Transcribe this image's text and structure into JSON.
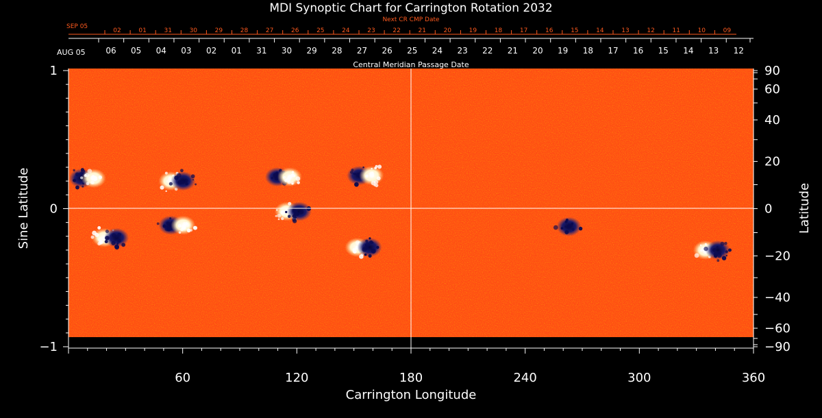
{
  "chart_data": {
    "type": "heatmap",
    "title": "MDI Synoptic Chart for Carrington Rotation 2032",
    "xlabel": "Carrington Longitude",
    "ylabel_left": "Sine Latitude",
    "ylabel_right": "Latitude",
    "xlim": [
      0,
      360
    ],
    "ylim": [
      -1,
      1
    ],
    "x_ticks": [
      60,
      120,
      180,
      240,
      300,
      360
    ],
    "y_ticks_left": [
      {
        "value": 1,
        "label": "1"
      },
      {
        "value": 0,
        "label": "0"
      },
      {
        "value": -1,
        "label": "−1"
      }
    ],
    "y_ticks_right": [
      {
        "lat": 90,
        "label": "90"
      },
      {
        "lat": 60,
        "label": "60"
      },
      {
        "lat": 40,
        "label": "40"
      },
      {
        "lat": 20,
        "label": "20"
      },
      {
        "lat": 0,
        "label": "0"
      },
      {
        "lat": -20,
        "label": "−20"
      },
      {
        "lat": -40,
        "label": "−40"
      },
      {
        "lat": -60,
        "label": "−60"
      },
      {
        "lat": -90,
        "label": "−90"
      }
    ],
    "cmp_axis": {
      "label": "Central Meridian Passage Date",
      "start_label": "AUG 05",
      "dates": [
        "06",
        "05",
        "04",
        "03",
        "02",
        "01",
        "31",
        "30",
        "29",
        "28",
        "27",
        "26",
        "25",
        "24",
        "23",
        "22",
        "21",
        "20",
        "19",
        "18",
        "17",
        "16",
        "15",
        "14",
        "13",
        "12"
      ]
    },
    "next_cr_axis": {
      "label": "Next CR CMP Date",
      "start_label": "SEP 05",
      "dates": [
        "02",
        "01",
        "31",
        "30",
        "29",
        "28",
        "27",
        "26",
        "25",
        "24",
        "23",
        "22",
        "21",
        "20",
        "19",
        "18",
        "17",
        "16",
        "15",
        "14",
        "13",
        "12",
        "11",
        "10",
        "09"
      ]
    },
    "colors": {
      "background": "#000000",
      "field_base": "#ff4a14",
      "positive_polarity": "#ffffff",
      "negative_polarity": "#0a0a50",
      "next_cr_axis": "#ff5a1e"
    },
    "active_regions": [
      {
        "lon": 10,
        "sinlat": 0.22,
        "polarity_order": "neg-pos"
      },
      {
        "lon": 57,
        "sinlat": 0.2,
        "polarity_order": "pos-neg"
      },
      {
        "lon": 113,
        "sinlat": 0.23,
        "polarity_order": "neg-pos"
      },
      {
        "lon": 156,
        "sinlat": 0.24,
        "polarity_order": "neg-pos"
      },
      {
        "lon": 22,
        "sinlat": -0.21,
        "polarity_order": "pos-neg"
      },
      {
        "lon": 57,
        "sinlat": -0.12,
        "polarity_order": "neg-pos"
      },
      {
        "lon": 118,
        "sinlat": -0.02,
        "polarity_order": "pos-neg"
      },
      {
        "lon": 155,
        "sinlat": -0.28,
        "polarity_order": "pos-neg"
      },
      {
        "lon": 263,
        "sinlat": -0.13,
        "polarity_order": "neg"
      },
      {
        "lon": 338,
        "sinlat": -0.3,
        "polarity_order": "pos-neg"
      }
    ]
  }
}
